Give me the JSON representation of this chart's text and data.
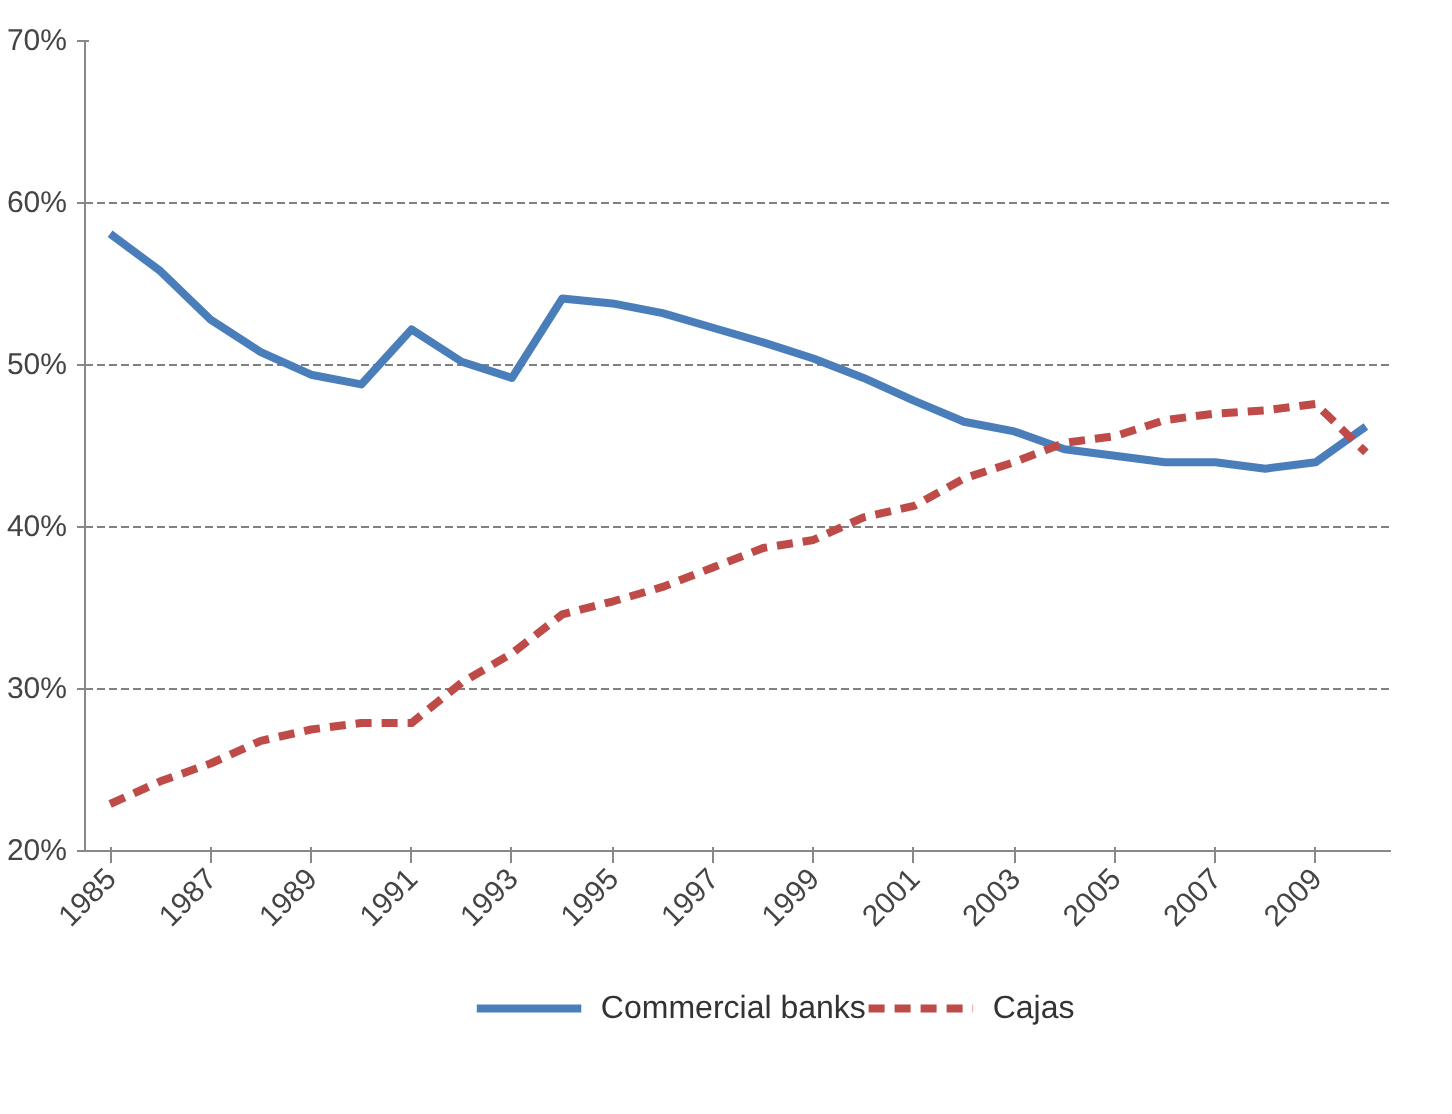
{
  "chart_data": {
    "type": "line",
    "x": [
      1985,
      1986,
      1987,
      1988,
      1989,
      1990,
      1991,
      1992,
      1993,
      1994,
      1995,
      1996,
      1997,
      1998,
      1999,
      2000,
      2001,
      2002,
      2003,
      2004,
      2005,
      2006,
      2007,
      2008,
      2009,
      2010
    ],
    "series": [
      {
        "name": "Commercial banks",
        "color": "#4a7ebb",
        "line_style": "solid",
        "values": [
          58.1,
          55.8,
          52.8,
          50.8,
          49.4,
          48.8,
          52.2,
          50.2,
          49.2,
          54.1,
          53.8,
          53.2,
          52.3,
          51.4,
          50.4,
          49.2,
          47.8,
          46.5,
          45.9,
          44.8,
          44.4,
          44.0,
          44.0,
          43.6,
          44.0,
          46.2
        ]
      },
      {
        "name": "Cajas",
        "color": "#be4b48",
        "line_style": "dashed",
        "values": [
          22.9,
          24.3,
          25.4,
          26.8,
          27.5,
          27.9,
          27.9,
          30.4,
          32.2,
          34.6,
          35.4,
          36.3,
          37.5,
          38.7,
          39.2,
          40.6,
          41.3,
          43.0,
          44.0,
          45.2,
          45.6,
          46.6,
          47.0,
          47.2,
          47.6,
          44.6
        ]
      }
    ],
    "xlim": [
      1984.5,
      2010.5
    ],
    "xticks": [
      1985,
      1987,
      1989,
      1991,
      1993,
      1995,
      1997,
      1999,
      2001,
      2003,
      2005,
      2007,
      2009
    ],
    "ylim": [
      20,
      70
    ],
    "yticks": [
      {
        "value": 20,
        "label": "20%"
      },
      {
        "value": 30,
        "label": "30%"
      },
      {
        "value": 40,
        "label": "40%"
      },
      {
        "value": 50,
        "label": "50%"
      },
      {
        "value": 60,
        "label": "60%"
      },
      {
        "value": 70,
        "label": "70%"
      }
    ],
    "grid": "y",
    "legend": "bottom",
    "marker": "none"
  }
}
